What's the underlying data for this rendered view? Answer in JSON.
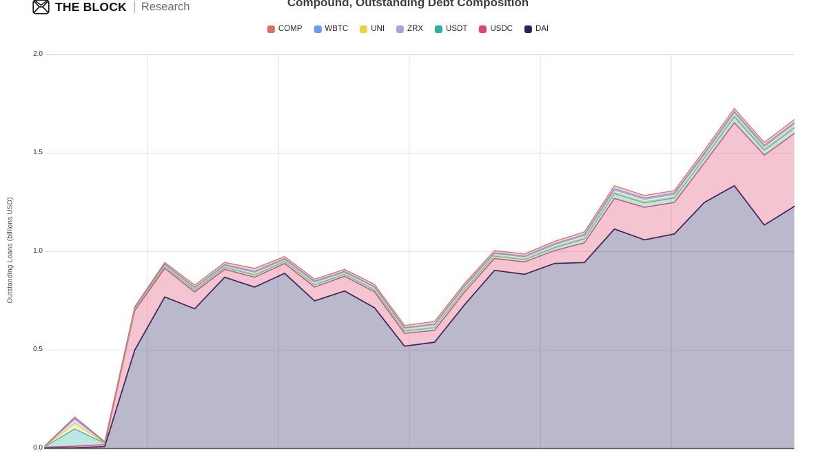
{
  "header": {
    "brand": "THE BLOCK",
    "brand_sub": "Research",
    "title": "Compound, Outstanding Debt Composition"
  },
  "y_axis": {
    "label": "Outstanding Loans (billions USD)",
    "ticks": [
      "2.0",
      "1.5",
      "1.0",
      "0.5",
      "0.0"
    ]
  },
  "legend": {
    "items": [
      {
        "label": "COMP",
        "color": "#dc6e62"
      },
      {
        "label": "WBTC",
        "color": "#6c9ce8"
      },
      {
        "label": "UNI",
        "color": "#f0cf4b"
      },
      {
        "label": "ZRX",
        "color": "#aba5d5"
      },
      {
        "label": "USDT",
        "color": "#2eb0a2"
      },
      {
        "label": "USDC",
        "color": "#e0476f"
      },
      {
        "label": "DAI",
        "color": "#29235c"
      }
    ]
  },
  "chart_data": {
    "type": "area",
    "stacked": true,
    "title": "Compound, Outstanding Debt Composition",
    "ylabel": "Outstanding Loans (billions USD)",
    "units": "billions USD",
    "ylim": [
      0,
      2.0
    ],
    "y_ticks": [
      0.0,
      0.5,
      1.0,
      1.5,
      2.0
    ],
    "grid": true,
    "legend_position": "top",
    "x_axis_labels_visible": false,
    "x": [
      1,
      2,
      3,
      4,
      5,
      6,
      7,
      8,
      9,
      10,
      11,
      12,
      13,
      14,
      15,
      16,
      17,
      18,
      19,
      20,
      21,
      22,
      23,
      24,
      25,
      26
    ],
    "stack_order_bottom_to_top": [
      "DAI",
      "USDC",
      "USDT",
      "UNI",
      "ZRX",
      "WBTC",
      "COMP"
    ],
    "series": [
      {
        "name": "DAI",
        "color": "#29235c",
        "values": [
          0.003,
          0.004,
          0.01,
          0.5,
          0.77,
          0.71,
          0.87,
          0.82,
          0.89,
          0.75,
          0.8,
          0.715,
          0.52,
          0.54,
          0.73,
          0.905,
          0.885,
          0.94,
          0.945,
          1.115,
          1.06,
          1.09,
          1.25,
          1.335,
          1.135,
          1.23
        ]
      },
      {
        "name": "USDC",
        "color": "#e0476f",
        "values": [
          0.004,
          0.008,
          0.01,
          0.2,
          0.145,
          0.085,
          0.04,
          0.05,
          0.05,
          0.07,
          0.075,
          0.08,
          0.065,
          0.06,
          0.065,
          0.06,
          0.063,
          0.065,
          0.1,
          0.155,
          0.165,
          0.16,
          0.2,
          0.32,
          0.355,
          0.37
        ]
      },
      {
        "name": "USDT",
        "color": "#2eb0a2",
        "values": [
          0.002,
          0.088,
          0.006,
          0.006,
          0.01,
          0.01,
          0.01,
          0.012,
          0.01,
          0.012,
          0.01,
          0.01,
          0.012,
          0.014,
          0.015,
          0.013,
          0.012,
          0.015,
          0.02,
          0.025,
          0.023,
          0.023,
          0.025,
          0.03,
          0.025,
          0.028
        ]
      },
      {
        "name": "UNI",
        "color": "#f0cf4b",
        "values": [
          0.001,
          0.028,
          0.002,
          0.002,
          0.003,
          0.003,
          0.003,
          0.003,
          0.003,
          0.003,
          0.003,
          0.003,
          0.003,
          0.003,
          0.003,
          0.003,
          0.003,
          0.004,
          0.005,
          0.005,
          0.005,
          0.005,
          0.005,
          0.007,
          0.006,
          0.007
        ]
      },
      {
        "name": "ZRX",
        "color": "#aba5d5",
        "values": [
          0.001,
          0.022,
          0.003,
          0.005,
          0.007,
          0.007,
          0.007,
          0.01,
          0.007,
          0.01,
          0.008,
          0.01,
          0.01,
          0.011,
          0.01,
          0.009,
          0.01,
          0.011,
          0.012,
          0.013,
          0.013,
          0.013,
          0.013,
          0.013,
          0.012,
          0.013
        ]
      },
      {
        "name": "WBTC",
        "color": "#6c9ce8",
        "values": [
          0.001,
          0.003,
          0.001,
          0.002,
          0.003,
          0.003,
          0.004,
          0.005,
          0.005,
          0.005,
          0.004,
          0.004,
          0.004,
          0.004,
          0.004,
          0.004,
          0.004,
          0.005,
          0.005,
          0.007,
          0.006,
          0.006,
          0.007,
          0.007,
          0.007,
          0.007
        ]
      },
      {
        "name": "COMP",
        "color": "#dc6e62",
        "values": [
          0.002,
          0.007,
          0.003,
          0.005,
          0.007,
          0.012,
          0.011,
          0.015,
          0.01,
          0.01,
          0.01,
          0.011,
          0.011,
          0.013,
          0.011,
          0.011,
          0.011,
          0.012,
          0.013,
          0.015,
          0.013,
          0.013,
          0.015,
          0.015,
          0.015,
          0.015
        ]
      }
    ]
  }
}
